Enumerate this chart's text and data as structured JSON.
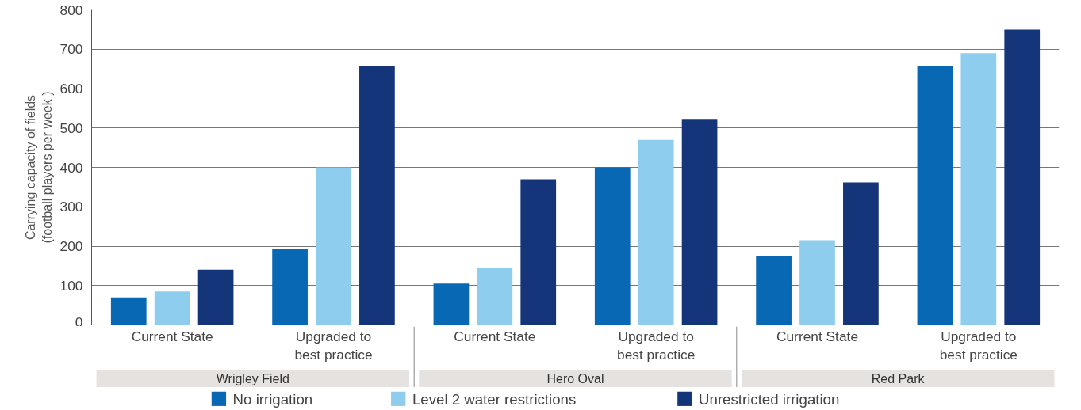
{
  "chart_data": {
    "type": "bar",
    "ylabel": "Carrying capacity of fields\n(football players per week )",
    "categories": [
      "Current State",
      "Upgraded to\nbest practice",
      "Current State",
      "Upgraded to\nbest practice",
      "Current State",
      "Upgraded to\nbest practice"
    ],
    "annotations": [
      "Wrigley Field",
      "Hero Oval",
      "Red Park"
    ],
    "series": [
      {
        "name": "No irrigation",
        "color": "#0868b4",
        "values": [
          70,
          192,
          105,
          400,
          175,
          657
        ]
      },
      {
        "name": "Level 2 water restrictions",
        "color": "#8ecdee",
        "values": [
          85,
          400,
          145,
          470,
          215,
          690
        ]
      },
      {
        "name": "Unrestricted irrigation",
        "color": "#15357a",
        "values": [
          140,
          657,
          370,
          523,
          362,
          750
        ]
      }
    ],
    "ylim": [
      0,
      800
    ],
    "yticks": [
      0,
      100,
      200,
      300,
      400,
      500,
      600,
      700,
      800
    ],
    "grid": "y",
    "legend": "bottom"
  }
}
